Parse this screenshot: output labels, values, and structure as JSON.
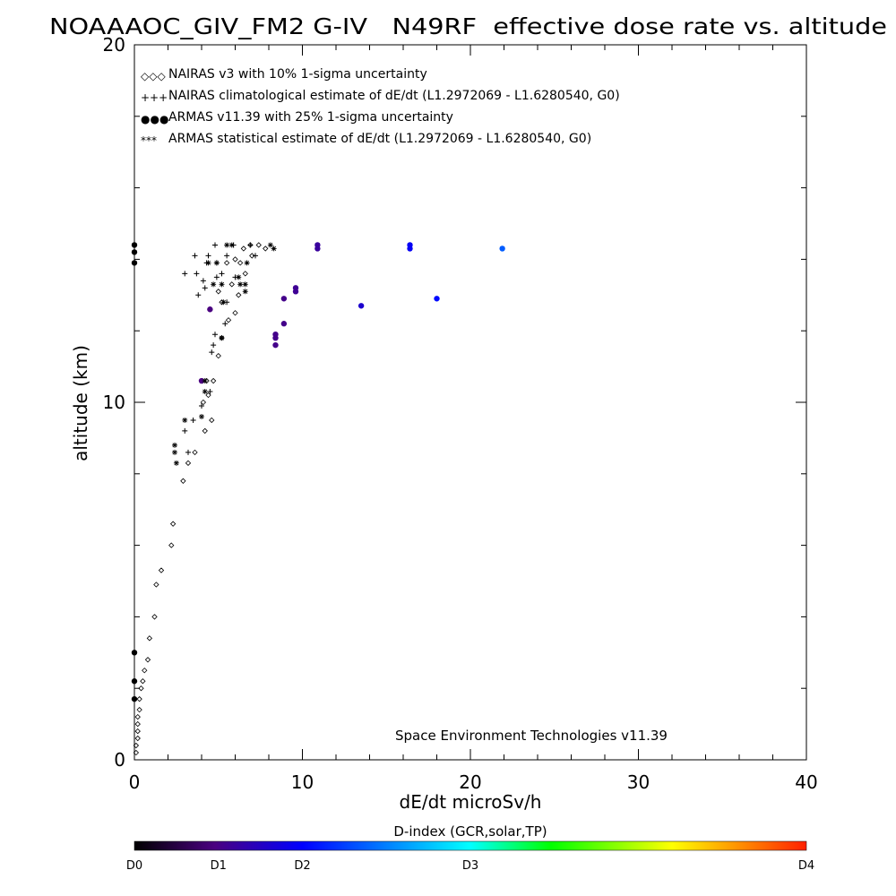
{
  "chart_data": {
    "type": "scatter",
    "title": "NOAAAOC_GIV_FM2 G-IV   N49RF  effective dose rate vs. altitude",
    "xlabel": "dE/dt microSv/h",
    "ylabel": "altitude (km)",
    "xlim": [
      0,
      40
    ],
    "ylim": [
      0,
      20
    ],
    "x_ticks": [
      0,
      10,
      20,
      30,
      40
    ],
    "y_ticks": [
      0,
      10,
      20
    ],
    "legend_position": "top-left",
    "legend": [
      {
        "symbol": "◇◇◇",
        "label": "NAIRAS v3 with 10% 1-sigma uncertainty"
      },
      {
        "symbol": "+++",
        "label": "NAIRAS climatological estimate of dE/dt (L1.2972069 - L1.6280540, G0)"
      },
      {
        "symbol": "●●●",
        "label": "ARMAS v11.39 with 25% 1-sigma uncertainty"
      },
      {
        "symbol": "***",
        "label": "ARMAS statistical estimate of dE/dt (L1.2972069 - L1.6280540, G0)"
      }
    ],
    "annotation": "Space Environment Technologies v11.39",
    "colorbar": {
      "label": "D-index (GCR,solar,TP)",
      "ticks": [
        {
          "label": "D0",
          "pos": 0.0
        },
        {
          "label": "D1",
          "pos": 0.125
        },
        {
          "label": "D2",
          "pos": 0.25
        },
        {
          "label": "D3",
          "pos": 0.5
        },
        {
          "label": "D4",
          "pos": 1.0
        }
      ]
    },
    "series": [
      {
        "name": "NAIRAS v3 with 10% 1-sigma uncertainty",
        "marker": "diamond",
        "points": [
          [
            0.1,
            0.2
          ],
          [
            0.1,
            0.4
          ],
          [
            0.2,
            0.6
          ],
          [
            0.2,
            0.8
          ],
          [
            0.2,
            1.0
          ],
          [
            0.2,
            1.2
          ],
          [
            0.3,
            1.4
          ],
          [
            0.3,
            1.7
          ],
          [
            0.4,
            2.0
          ],
          [
            0.5,
            2.2
          ],
          [
            0.6,
            2.5
          ],
          [
            0.8,
            2.8
          ],
          [
            0.9,
            3.4
          ],
          [
            1.2,
            4.0
          ],
          [
            1.3,
            4.9
          ],
          [
            1.6,
            5.3
          ],
          [
            2.2,
            6.0
          ],
          [
            2.3,
            6.6
          ],
          [
            2.9,
            7.8
          ],
          [
            3.2,
            8.3
          ],
          [
            3.6,
            8.6
          ],
          [
            4.2,
            9.2
          ],
          [
            4.6,
            9.5
          ],
          [
            4.1,
            10.0
          ],
          [
            4.4,
            10.2
          ],
          [
            4.3,
            10.6
          ],
          [
            4.7,
            10.6
          ],
          [
            5.0,
            11.3
          ],
          [
            5.2,
            11.8
          ],
          [
            5.6,
            12.3
          ],
          [
            6.0,
            12.5
          ],
          [
            5.2,
            12.8
          ],
          [
            6.2,
            13.0
          ],
          [
            5.0,
            13.1
          ],
          [
            5.8,
            13.3
          ],
          [
            6.6,
            13.6
          ],
          [
            6.3,
            13.9
          ],
          [
            5.5,
            13.9
          ],
          [
            6.0,
            14.0
          ],
          [
            7.0,
            14.1
          ],
          [
            6.5,
            14.3
          ],
          [
            7.8,
            14.3
          ],
          [
            6.9,
            14.4
          ],
          [
            7.4,
            14.4
          ]
        ]
      },
      {
        "name": "NAIRAS climatological estimate of dE/dt (L1.2972069 - L1.6280540, G0)",
        "marker": "plus",
        "points": [
          [
            3.2,
            8.6
          ],
          [
            3.0,
            9.2
          ],
          [
            3.5,
            9.5
          ],
          [
            4.0,
            9.9
          ],
          [
            4.5,
            10.3
          ],
          [
            4.6,
            11.4
          ],
          [
            4.7,
            11.6
          ],
          [
            4.8,
            11.9
          ],
          [
            5.4,
            12.2
          ],
          [
            5.5,
            12.8
          ],
          [
            3.8,
            13.0
          ],
          [
            4.2,
            13.2
          ],
          [
            4.1,
            13.4
          ],
          [
            4.9,
            13.5
          ],
          [
            6.0,
            13.5
          ],
          [
            5.2,
            13.6
          ],
          [
            3.0,
            13.6
          ],
          [
            3.7,
            13.6
          ],
          [
            4.3,
            13.9
          ],
          [
            4.9,
            13.9
          ],
          [
            3.6,
            14.1
          ],
          [
            4.4,
            14.1
          ],
          [
            5.5,
            14.1
          ],
          [
            7.2,
            14.1
          ],
          [
            4.8,
            14.4
          ],
          [
            5.9,
            14.4
          ],
          [
            6.9,
            14.4
          ]
        ]
      },
      {
        "name": "ARMAS v11.39 with 25% 1-sigma uncertainty",
        "marker": "circle",
        "points": [
          {
            "x": 0.0,
            "y": 13.9,
            "d": 0.0
          },
          {
            "x": 0.0,
            "y": 14.2,
            "d": 0.0
          },
          {
            "x": 0.0,
            "y": 14.4,
            "d": 0.0
          },
          {
            "x": 0.0,
            "y": 3.0,
            "d": 0.0
          },
          {
            "x": 0.0,
            "y": 2.2,
            "d": 0.0
          },
          {
            "x": 0.0,
            "y": 1.7,
            "d": 0.0
          },
          {
            "x": 4.0,
            "y": 10.6,
            "d": 0.12
          },
          {
            "x": 4.5,
            "y": 12.6,
            "d": 0.12
          },
          {
            "x": 8.4,
            "y": 11.6,
            "d": 0.13
          },
          {
            "x": 8.4,
            "y": 11.8,
            "d": 0.13
          },
          {
            "x": 8.4,
            "y": 11.9,
            "d": 0.13
          },
          {
            "x": 8.9,
            "y": 12.2,
            "d": 0.13
          },
          {
            "x": 8.9,
            "y": 12.9,
            "d": 0.13
          },
          {
            "x": 9.6,
            "y": 13.1,
            "d": 0.14
          },
          {
            "x": 9.6,
            "y": 13.2,
            "d": 0.14
          },
          {
            "x": 10.9,
            "y": 14.3,
            "d": 0.15
          },
          {
            "x": 10.9,
            "y": 14.4,
            "d": 0.15
          },
          {
            "x": 13.5,
            "y": 12.7,
            "d": 0.2
          },
          {
            "x": 16.4,
            "y": 14.3,
            "d": 0.24
          },
          {
            "x": 16.4,
            "y": 14.4,
            "d": 0.24
          },
          {
            "x": 18.0,
            "y": 12.9,
            "d": 0.26
          },
          {
            "x": 21.9,
            "y": 14.3,
            "d": 0.34
          }
        ]
      },
      {
        "name": "ARMAS statistical estimate of dE/dt (L1.2972069 - L1.6280540, G0)",
        "marker": "asterisk",
        "points": [
          [
            2.5,
            8.3
          ],
          [
            2.4,
            8.6
          ],
          [
            2.4,
            8.8
          ],
          [
            3.0,
            9.5
          ],
          [
            4.0,
            9.6
          ],
          [
            4.2,
            10.3
          ],
          [
            4.2,
            10.6
          ],
          [
            5.2,
            11.8
          ],
          [
            5.3,
            12.8
          ],
          [
            6.6,
            13.1
          ],
          [
            4.7,
            13.3
          ],
          [
            5.2,
            13.3
          ],
          [
            6.3,
            13.3
          ],
          [
            6.6,
            13.3
          ],
          [
            4.4,
            13.9
          ],
          [
            4.9,
            13.9
          ],
          [
            6.2,
            13.5
          ],
          [
            6.7,
            13.9
          ],
          [
            5.8,
            14.4
          ],
          [
            5.5,
            14.4
          ],
          [
            8.1,
            14.4
          ],
          [
            8.3,
            14.3
          ]
        ]
      }
    ]
  }
}
